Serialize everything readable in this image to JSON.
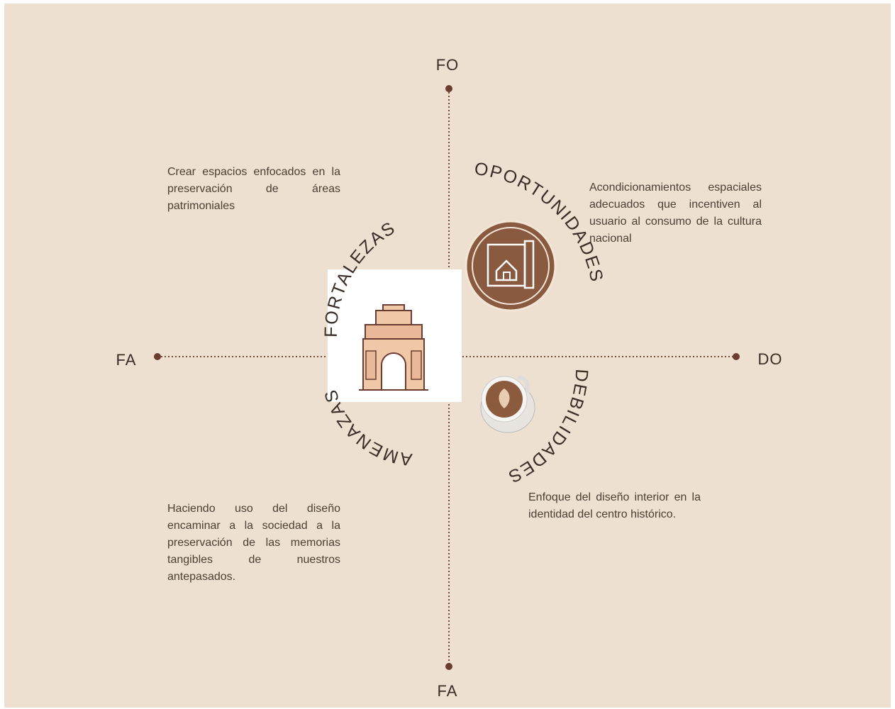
{
  "axes": {
    "top": "FO",
    "left": "FA",
    "right": "DO",
    "bottom": "FA"
  },
  "quadrants": {
    "top_left": {
      "title": "FORTALEZAS",
      "text": "Crear espacios enfocados en la preservación de áreas patrimoniales"
    },
    "top_right": {
      "title": "OPORTUNIDADES",
      "text": "Acondicionamientos espaciales adecuados que incentiven al usuario al consumo de la cultura nacional"
    },
    "bottom_right": {
      "title": "DEBILIDADES",
      "text": "Enfoque del diseño interior en la identidad del centro histórico."
    },
    "bottom_left": {
      "title": "AMENAZAS",
      "text": "Haciendo uso del diseño encaminar a la sociedad a la preservación de las memorias tangibles de nuestros antepasados."
    }
  }
}
